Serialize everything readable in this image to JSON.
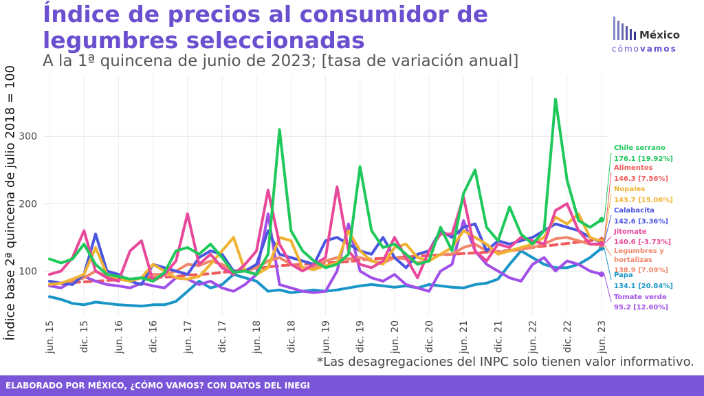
{
  "title": "Índice de precios al consumidor de legumbres seleccionadas",
  "subtitle": "A la 1ª quincena de junio de 2023; [tasa de variación anual]",
  "logo": {
    "top": "México",
    "bottom_a": "cómo",
    "bottom_b": "vamos"
  },
  "footnote": "*Las desagregaciones del INPC solo tienen valor informativo.",
  "footer": "ELABORADO POR MÉXICO, ¿CÓMO VAMOS? CON DATOS DEL INEGI",
  "chart_data": {
    "type": "line",
    "ylabel": "Índice base 2ª quincena de julio 2018 = 100",
    "xlabel": "",
    "ylim": [
      35,
      390
    ],
    "yticks": [
      100,
      200,
      300
    ],
    "grid": true,
    "x": [
      2015.5,
      2015.667,
      2015.833,
      2016.0,
      2016.167,
      2016.333,
      2016.5,
      2016.667,
      2016.833,
      2017.0,
      2017.167,
      2017.333,
      2017.5,
      2017.667,
      2017.833,
      2018.0,
      2018.167,
      2018.333,
      2018.5,
      2018.667,
      2018.833,
      2019.0,
      2019.167,
      2019.333,
      2019.5,
      2019.667,
      2019.833,
      2020.0,
      2020.167,
      2020.333,
      2020.5,
      2020.667,
      2020.833,
      2021.0,
      2021.167,
      2021.333,
      2021.5,
      2021.667,
      2021.833,
      2022.0,
      2022.167,
      2022.333,
      2022.5,
      2022.667,
      2022.833,
      2023.0,
      2023.167,
      2023.333,
      2023.5
    ],
    "xticks": [
      {
        "label": "jun. 15",
        "x": 2015.5
      },
      {
        "label": "dic. 15",
        "x": 2016.0
      },
      {
        "label": "jun. 16",
        "x": 2016.5
      },
      {
        "label": "dic. 16",
        "x": 2017.0
      },
      {
        "label": "jun. 17",
        "x": 2017.5
      },
      {
        "label": "dic. 17",
        "x": 2018.0
      },
      {
        "label": "jun. 18",
        "x": 2018.5
      },
      {
        "label": "dic. 18",
        "x": 2019.0
      },
      {
        "label": "jun. 19",
        "x": 2019.5
      },
      {
        "label": "dic. 19",
        "x": 2020.0
      },
      {
        "label": "jun. 20",
        "x": 2020.5
      },
      {
        "label": "dic. 20",
        "x": 2021.0
      },
      {
        "label": "jun. 21",
        "x": 2021.5
      },
      {
        "label": "dic. 21",
        "x": 2022.0
      },
      {
        "label": "jun. 22",
        "x": 2022.5
      },
      {
        "label": "dic. 22",
        "x": 2023.0
      },
      {
        "label": "jun. 23",
        "x": 2023.5
      }
    ],
    "series": [
      {
        "name": "Chile serrano",
        "end_label": "176.1 [19.92%]",
        "color": "#1ec85a",
        "dashed": false,
        "values": [
          118,
          112,
          118,
          140,
          110,
          95,
          92,
          88,
          90,
          85,
          98,
          130,
          135,
          125,
          140,
          120,
          98,
          100,
          95,
          125,
          310,
          160,
          130,
          115,
          105,
          110,
          125,
          255,
          160,
          135,
          140,
          125,
          110,
          115,
          165,
          130,
          215,
          250,
          165,
          145,
          195,
          155,
          140,
          160,
          355,
          235,
          175,
          165,
          176.1
        ]
      },
      {
        "name": "Alimentos",
        "end_label": "146.3 [7.56%]",
        "color": "#f05a5a",
        "dashed": true,
        "values": [
          80,
          81,
          83,
          84,
          85,
          86,
          87,
          88,
          89,
          90,
          91,
          92,
          94,
          95,
          96,
          98,
          100,
          102,
          104,
          106,
          108,
          109,
          110,
          111,
          112,
          113,
          114,
          116,
          118,
          119,
          120,
          121,
          122,
          123,
          124,
          125,
          126,
          127,
          128,
          129,
          131,
          133,
          135,
          137,
          139,
          141,
          143,
          145,
          146.3
        ]
      },
      {
        "name": "Nopales",
        "end_label": "143.7 [15.06%]",
        "color": "#f0b232",
        "dashed": false,
        "values": [
          80,
          82,
          88,
          95,
          135,
          95,
          88,
          85,
          90,
          110,
          100,
          90,
          88,
          92,
          110,
          130,
          150,
          100,
          95,
          105,
          150,
          145,
          105,
          102,
          108,
          112,
          160,
          130,
          115,
          110,
          135,
          140,
          120,
          115,
          125,
          135,
          160,
          150,
          140,
          125,
          130,
          135,
          140,
          150,
          180,
          170,
          185,
          150,
          143.7
        ]
      },
      {
        "name": "Calabacita",
        "end_label": "142.6 [3.36%]",
        "color": "#4a55e0",
        "dashed": false,
        "values": [
          85,
          82,
          80,
          95,
          155,
          100,
          95,
          85,
          80,
          110,
          105,
          100,
          95,
          120,
          130,
          125,
          100,
          100,
          110,
          160,
          125,
          120,
          115,
          110,
          145,
          150,
          140,
          130,
          125,
          150,
          120,
          105,
          125,
          130,
          160,
          150,
          165,
          170,
          130,
          145,
          140,
          145,
          150,
          160,
          170,
          165,
          160,
          150,
          142.6
        ]
      },
      {
        "name": "Jitomate",
        "end_label": "140.6 [-3.73%]",
        "color": "#e8489a",
        "dashed": false,
        "values": [
          95,
          100,
          120,
          160,
          100,
          90,
          85,
          130,
          145,
          85,
          95,
          115,
          185,
          110,
          125,
          105,
          95,
          110,
          130,
          220,
          140,
          110,
          100,
          110,
          120,
          225,
          130,
          110,
          105,
          115,
          150,
          120,
          90,
          130,
          155,
          155,
          210,
          130,
          115,
          140,
          135,
          150,
          145,
          140,
          190,
          200,
          160,
          140,
          140.6
        ]
      },
      {
        "name": "Legumbres y hortalizas",
        "end_label": "138.9 [7.09%]",
        "color": "#f0876a",
        "dashed": false,
        "values": [
          80,
          82,
          85,
          90,
          100,
          92,
          90,
          88,
          90,
          95,
          95,
          100,
          110,
          108,
          115,
          110,
          100,
          100,
          105,
          115,
          120,
          110,
          105,
          105,
          115,
          120,
          118,
          120,
          115,
          112,
          120,
          118,
          112,
          115,
          125,
          125,
          135,
          140,
          130,
          128,
          130,
          132,
          135,
          140,
          148,
          150,
          145,
          140,
          138.9
        ]
      },
      {
        "name": "Papa",
        "end_label": "134.1 [20.84%]",
        "color": "#1a95c8",
        "dashed": false,
        "values": [
          62,
          58,
          52,
          50,
          54,
          52,
          50,
          49,
          48,
          50,
          50,
          55,
          70,
          85,
          75,
          80,
          95,
          90,
          85,
          70,
          72,
          68,
          70,
          72,
          70,
          72,
          75,
          78,
          80,
          78,
          76,
          78,
          75,
          80,
          78,
          76,
          75,
          80,
          82,
          88,
          110,
          130,
          120,
          110,
          105,
          105,
          110,
          120,
          134.1
        ]
      },
      {
        "name": "Tomate verde",
        "end_label": "95.2 [12.60%]",
        "color": "#a050e8",
        "dashed": false,
        "values": [
          78,
          75,
          85,
          92,
          85,
          80,
          78,
          75,
          82,
          78,
          75,
          90,
          88,
          80,
          85,
          75,
          70,
          80,
          95,
          185,
          80,
          75,
          70,
          68,
          70,
          100,
          170,
          100,
          90,
          85,
          95,
          80,
          75,
          70,
          100,
          110,
          175,
          130,
          110,
          100,
          90,
          85,
          110,
          120,
          100,
          115,
          110,
          100,
          95.2
        ]
      }
    ]
  }
}
